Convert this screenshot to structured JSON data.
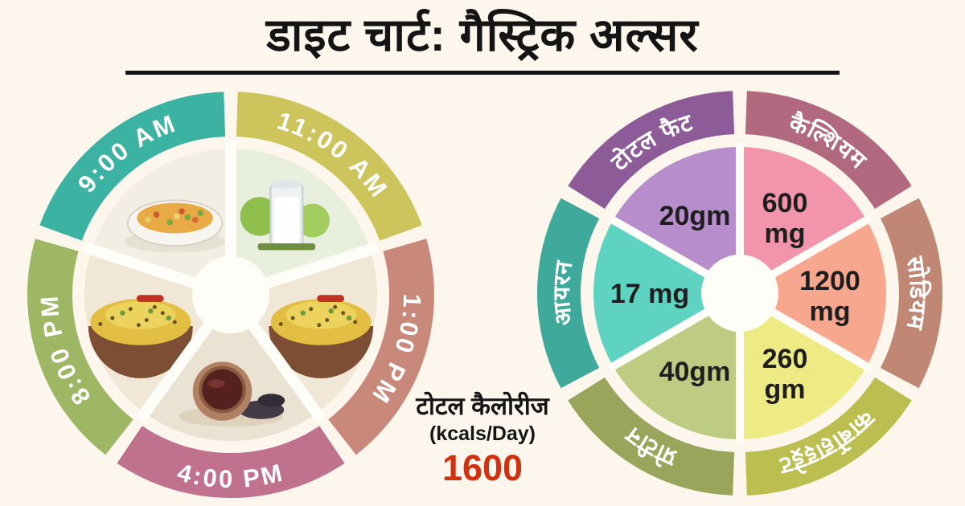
{
  "page": {
    "background": "#fcf6ed"
  },
  "header": {
    "title": "डाइट चार्ट: गैस्ट्रिक अल्सर"
  },
  "chart_data": [
    {
      "type": "pie",
      "name": "daily-nutrient-breakdown",
      "legend_position": "outer-ring",
      "segments": [
        {
          "label": "कैल्शियम",
          "value": 600,
          "unit": "mg",
          "value_lines": [
            "600",
            "mg"
          ],
          "angle": 30,
          "ring_color": "#b0697f",
          "wedge_color": "#f295ac"
        },
        {
          "label": "सोडियम",
          "value": 1200,
          "unit": "mg",
          "value_lines": [
            "1200",
            "mg"
          ],
          "angle": 90,
          "ring_color": "#c08774",
          "wedge_color": "#f7a78e"
        },
        {
          "label": "कार्बोहाइड्रेट",
          "value": 260,
          "unit": "gm",
          "value_lines": [
            "260",
            "gm"
          ],
          "angle": 150,
          "ring_color": "#bcbf50",
          "wedge_color": "#efeb84"
        },
        {
          "label": "प्रोटीन",
          "value": 40,
          "unit": "gm",
          "value_lines": [
            "40gm"
          ],
          "angle": 210,
          "ring_color": "#9aa55c",
          "wedge_color": "#bdcc82"
        },
        {
          "label": "आयरन",
          "value": 17,
          "unit": "mg",
          "value_lines": [
            "17 mg"
          ],
          "angle": 270,
          "ring_color": "#3fa99b",
          "wedge_color": "#5fd3c1"
        },
        {
          "label": "टोटल फैट",
          "value": 20,
          "unit": "gm",
          "value_lines": [
            "20gm"
          ],
          "angle": 330,
          "ring_color": "#8d5b97",
          "wedge_color": "#b78dcb"
        }
      ],
      "total_calories": {
        "label": "टोटल कैलोरीज",
        "unit": "(kcals/Day)",
        "value": "1600",
        "value_color": "#d23110"
      }
    },
    {
      "type": "pie",
      "name": "meal-schedule-wheel",
      "segments": [
        {
          "time": "9:00 AM",
          "angle": 324,
          "ring_color": "#3cb2a2",
          "wedge_color": "#f3eee3",
          "food": "vegetable-soup"
        },
        {
          "time": "11:00 AM",
          "angle": 36,
          "ring_color": "#cdc45c",
          "wedge_color": "#e9efdd",
          "food": "milk-glass-with-green-apples"
        },
        {
          "time": "1:00 PM",
          "angle": 108,
          "ring_color": "#c9897a",
          "wedge_color": "#f0e7d6",
          "food": "khichdi-bowl"
        },
        {
          "time": "4:00 PM",
          "angle": 180,
          "ring_color": "#c0718e",
          "wedge_color": "#eae2d2",
          "food": "tea-cup-with-leaves"
        },
        {
          "time": "8:00 PM",
          "angle": 252,
          "ring_color": "#9db765",
          "wedge_color": "#f0e7d6",
          "food": "khichdi-bowl"
        }
      ]
    }
  ]
}
